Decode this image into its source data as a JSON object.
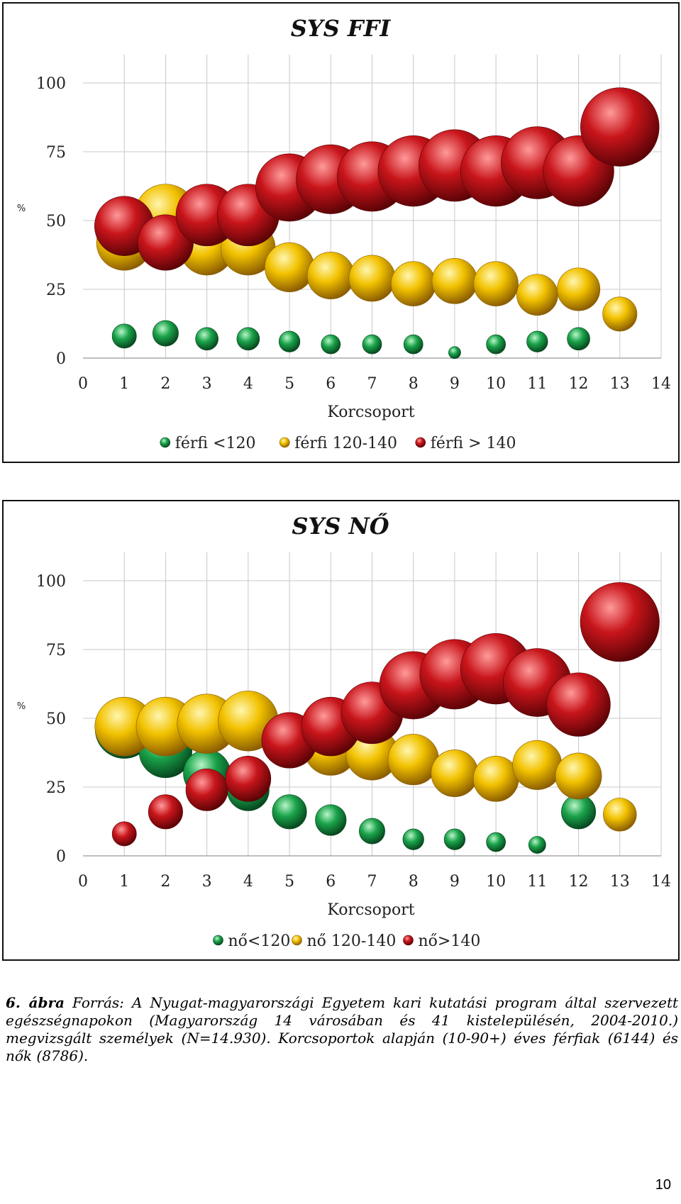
{
  "colors": {
    "green": "#1aa34a",
    "yellow": "#f2c200",
    "red": "#c8151b",
    "grid": "#c8c8c8"
  },
  "chart_data": [
    {
      "type": "scatter",
      "title": "SYS FFI",
      "xlabel": "Korcsoport",
      "ylabel": "%",
      "xlim": [
        0,
        14
      ],
      "ylim": [
        0,
        100
      ],
      "xticks": [
        "0",
        "1",
        "2",
        "3",
        "4",
        "5",
        "6",
        "7",
        "8",
        "9",
        "10",
        "11",
        "12",
        "13",
        "14"
      ],
      "yticks": [
        "0",
        "25",
        "50",
        "75",
        "100"
      ],
      "grid": true,
      "legend_position": "bottom",
      "series": [
        {
          "name": "férfi  <120",
          "color": "green",
          "x": [
            1,
            2,
            3,
            4,
            5,
            6,
            7,
            8,
            9,
            10,
            11,
            12
          ],
          "y": [
            8,
            9,
            7,
            7,
            6,
            5,
            5,
            5,
            2,
            5,
            6,
            7
          ]
        },
        {
          "name": "férfi 120-140",
          "color": "yellow",
          "x": [
            1,
            2,
            3,
            4,
            5,
            6,
            7,
            8,
            9,
            10,
            11,
            12,
            13
          ],
          "y": [
            42,
            52,
            40,
            40,
            33,
            30,
            29,
            27,
            28,
            27,
            23,
            25,
            16
          ]
        },
        {
          "name": "férfi > 140",
          "color": "red",
          "x": [
            1,
            2,
            3,
            4,
            5,
            6,
            7,
            8,
            9,
            10,
            11,
            12,
            13
          ],
          "y": [
            48,
            42,
            52,
            52,
            62,
            65,
            66,
            68,
            70,
            68,
            71,
            68,
            84
          ]
        }
      ]
    },
    {
      "type": "scatter",
      "title": "SYS NŐ",
      "xlabel": "Korcsoport",
      "ylabel": "%",
      "xlim": [
        0,
        14
      ],
      "ylim": [
        0,
        100
      ],
      "xticks": [
        "0",
        "1",
        "2",
        "3",
        "4",
        "5",
        "6",
        "7",
        "8",
        "9",
        "10",
        "11",
        "12",
        "13",
        "14"
      ],
      "yticks": [
        "0",
        "25",
        "50",
        "75",
        "100"
      ],
      "grid": true,
      "legend_position": "bottom",
      "series": [
        {
          "name": "nő<120",
          "color": "green",
          "x": [
            1,
            2,
            3,
            4,
            5,
            6,
            7,
            8,
            9,
            10,
            11,
            12
          ],
          "y": [
            46,
            38,
            30,
            24,
            16,
            13,
            9,
            6,
            6,
            5,
            4,
            16
          ]
        },
        {
          "name": "nő 120-140",
          "color": "yellow",
          "x": [
            1,
            2,
            3,
            4,
            5,
            6,
            7,
            8,
            9,
            10,
            11,
            12,
            13
          ],
          "y": [
            47,
            47,
            48,
            49,
            42,
            39,
            37,
            35,
            30,
            28,
            33,
            29,
            15
          ]
        },
        {
          "name": "nő>140",
          "color": "red",
          "x": [
            1,
            2,
            3,
            4,
            5,
            6,
            7,
            8,
            9,
            10,
            11,
            12,
            13
          ],
          "y": [
            8,
            16,
            24,
            28,
            42,
            47,
            52,
            62,
            66,
            68,
            63,
            55,
            85
          ]
        }
      ]
    }
  ],
  "caption": {
    "label": "6. ábra",
    "text": "Forrás: A Nyugat-magyarországi Egyetem kari kutatási program által szervezett egészségnapokon (Magyarország 14 városában és 41 kistelepülésén, 2004-2010.) megvizsgált személyek (N=14.930). Korcsoportok alapján (10-90+) éves férfiak (6144) és nők (8786)."
  },
  "page_number": "10"
}
